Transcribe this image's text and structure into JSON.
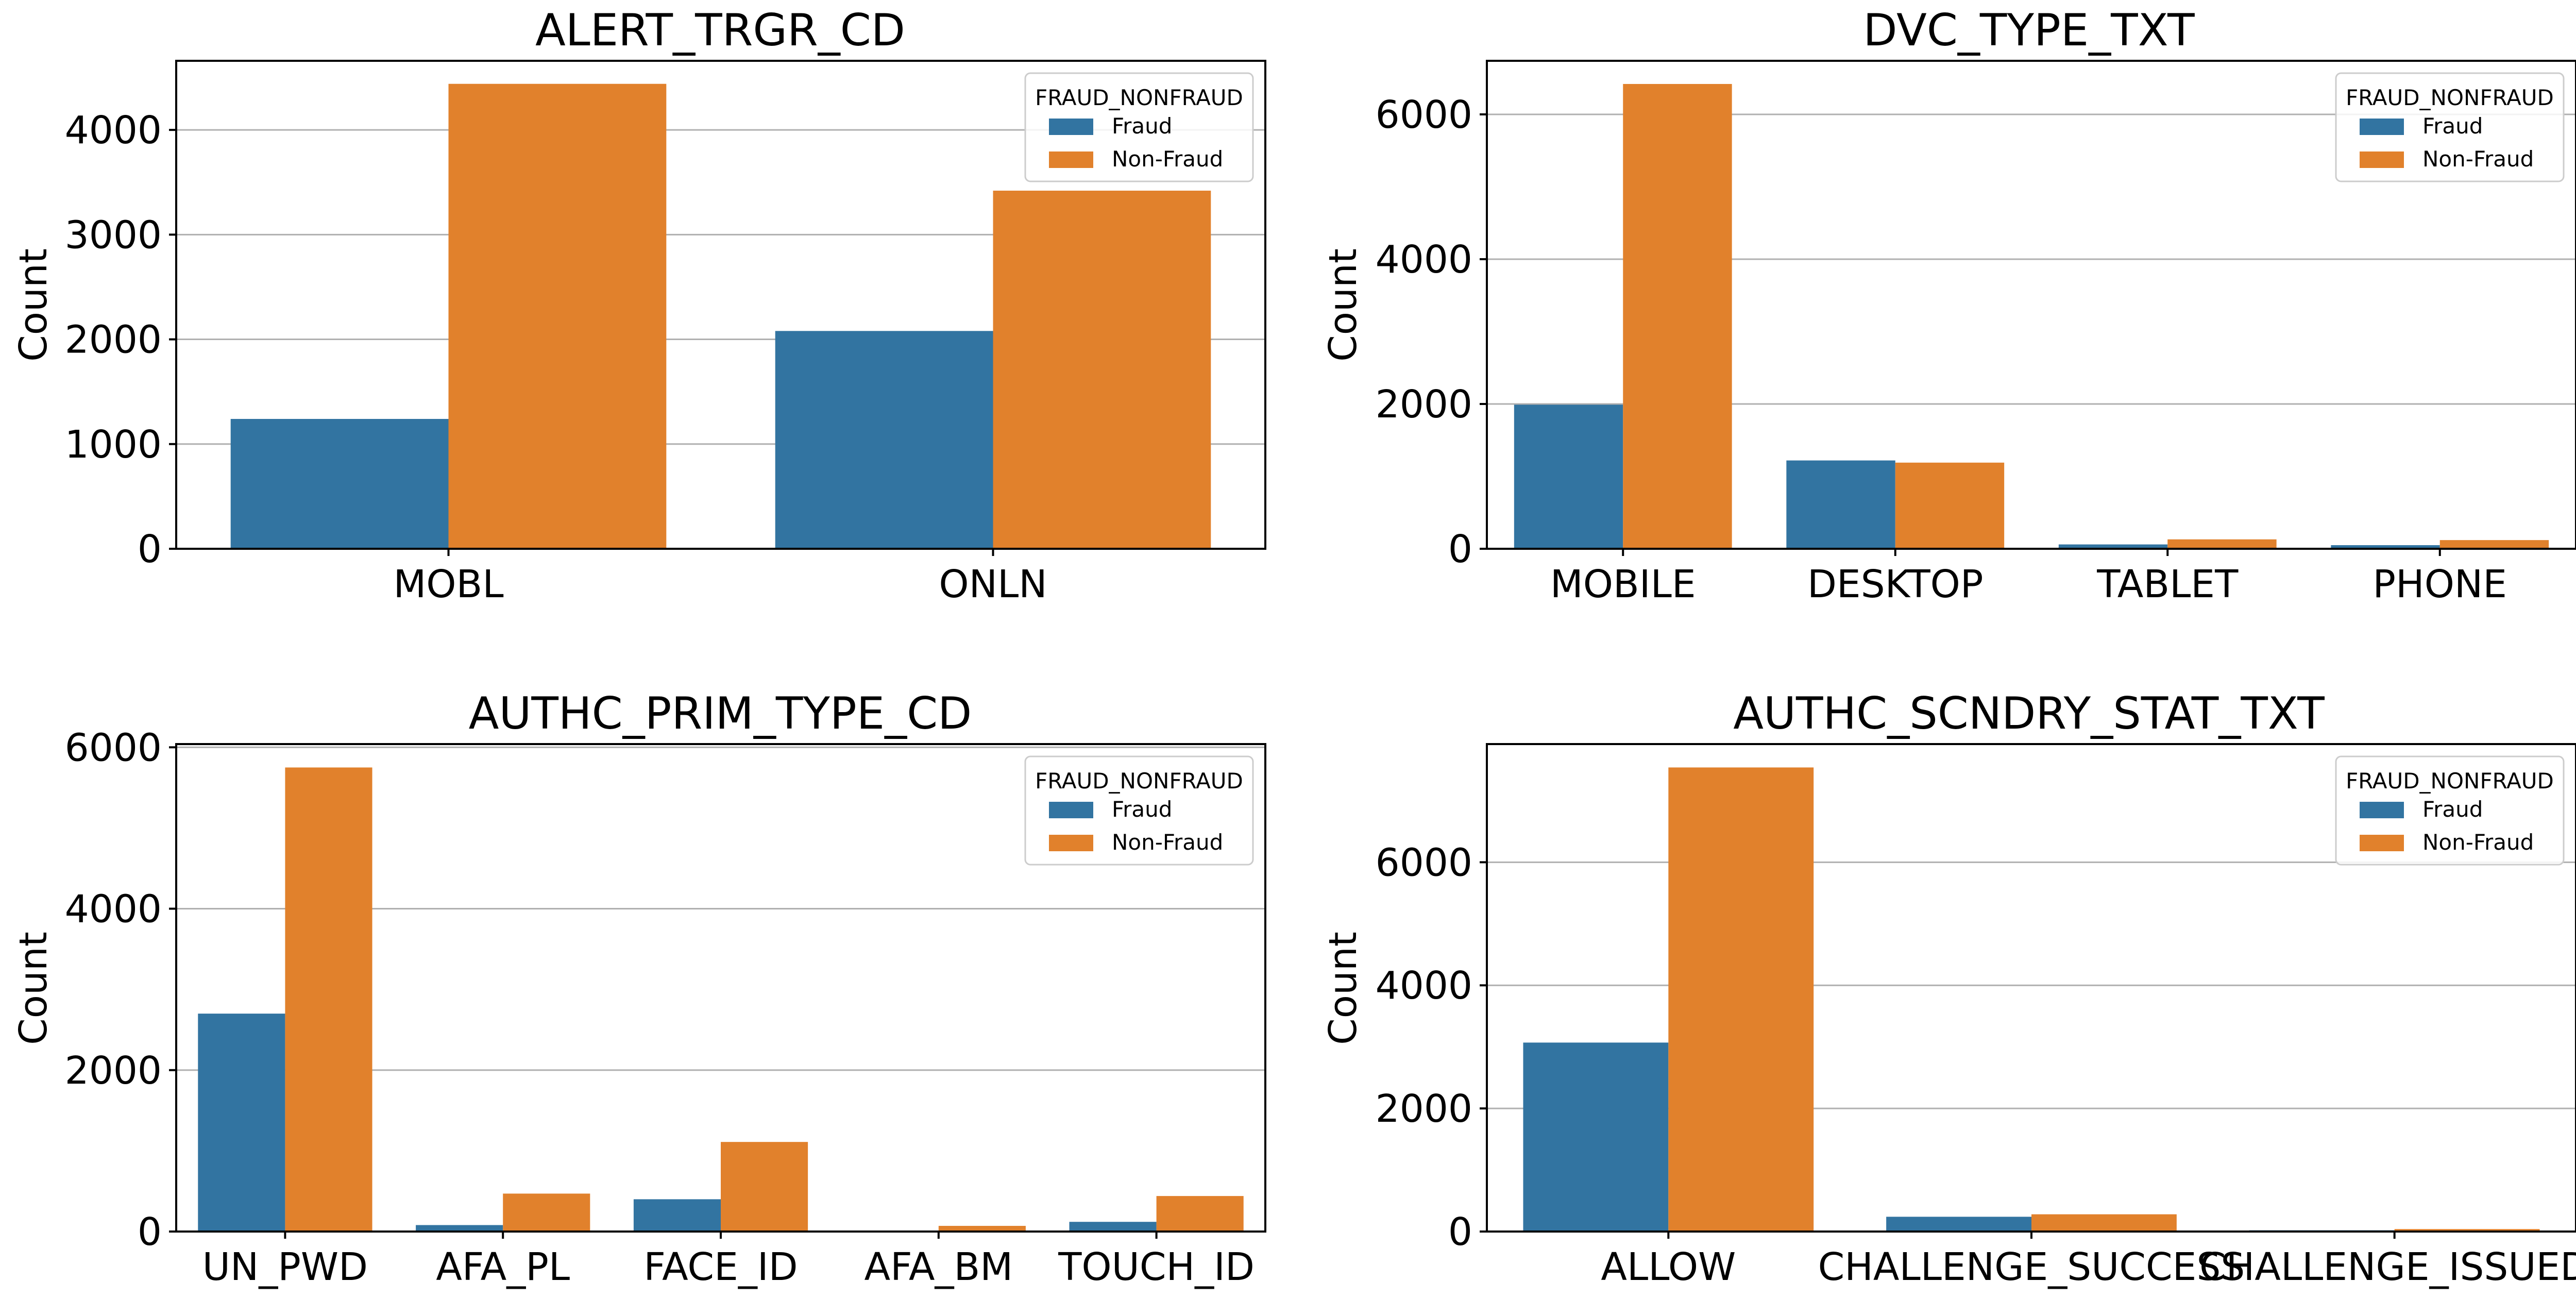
{
  "chart_data": [
    {
      "type": "bar",
      "title": "ALERT_TRGR_CD",
      "xlabel": "",
      "ylabel": "Count",
      "categories": [
        "MOBL",
        "ONLN"
      ],
      "series": [
        {
          "name": "Fraud",
          "values": [
            1240,
            2080
          ]
        },
        {
          "name": "Non-Fraud",
          "values": [
            4440,
            3420
          ]
        }
      ],
      "ylim": [
        0,
        4660
      ],
      "yticks": [
        0,
        1000,
        2000,
        3000,
        4000
      ],
      "grid": "y",
      "legend": {
        "title": "FRAUD_NONFRAUD",
        "placement": "top-right"
      }
    },
    {
      "type": "bar",
      "title": "DVC_TYPE_TXT",
      "xlabel": "",
      "ylabel": "Count",
      "categories": [
        "MOBILE",
        "DESKTOP",
        "TABLET",
        "PHONE"
      ],
      "series": [
        {
          "name": "Fraud",
          "values": [
            1990,
            1220,
            60,
            50
          ]
        },
        {
          "name": "Non-Fraud",
          "values": [
            6420,
            1190,
            130,
            120
          ]
        }
      ],
      "ylim": [
        0,
        6740
      ],
      "yticks": [
        0,
        2000,
        4000,
        6000
      ],
      "grid": "y",
      "legend": {
        "title": "FRAUD_NONFRAUD",
        "placement": "top-right"
      }
    },
    {
      "type": "bar",
      "title": "AUTHC_PRIM_TYPE_CD",
      "xlabel": "",
      "ylabel": "Count",
      "categories": [
        "UN_PWD",
        "AFA_PL",
        "FACE_ID",
        "AFA_BM",
        "TOUCH_ID"
      ],
      "series": [
        {
          "name": "Fraud",
          "values": [
            2700,
            80,
            400,
            0,
            120
          ]
        },
        {
          "name": "Non-Fraud",
          "values": [
            5750,
            470,
            1110,
            70,
            440
          ]
        }
      ],
      "ylim": [
        0,
        6040
      ],
      "yticks": [
        0,
        2000,
        4000,
        6000
      ],
      "grid": "y",
      "legend": {
        "title": "FRAUD_NONFRAUD",
        "placement": "top-right"
      }
    },
    {
      "type": "bar",
      "title": "AUTHC_SCNDRY_STAT_TXT",
      "xlabel": "",
      "ylabel": "Count",
      "categories": [
        "ALLOW",
        "CHALLENGE_SUCCESS",
        "CHALLENGE_ISSUED"
      ],
      "series": [
        {
          "name": "Fraud",
          "values": [
            3070,
            240,
            20
          ]
        },
        {
          "name": "Non-Fraud",
          "values": [
            7540,
            280,
            40
          ]
        }
      ],
      "ylim": [
        0,
        7920
      ],
      "yticks": [
        0,
        2000,
        4000,
        6000
      ],
      "grid": "y",
      "legend": {
        "title": "FRAUD_NONFRAUD",
        "placement": "top-right"
      }
    }
  ],
  "colors": {
    "Fraud": "#3274a1",
    "Non-Fraud": "#e1812c",
    "grid": "#b0b0b0",
    "axes": "#000000",
    "legend_border": "#cccccc"
  }
}
